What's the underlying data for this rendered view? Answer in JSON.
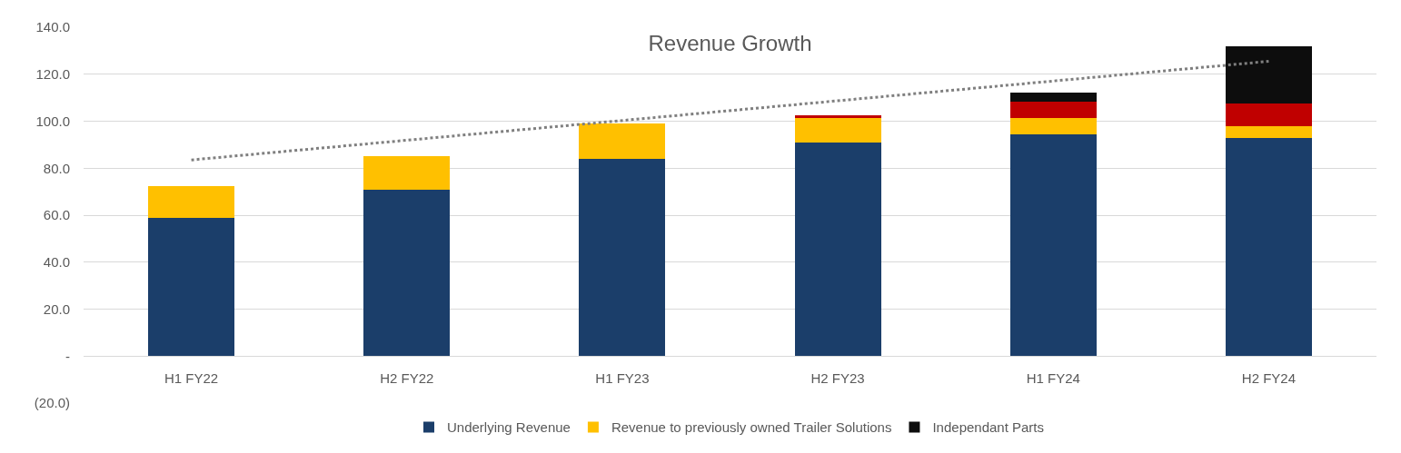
{
  "chart_data": {
    "type": "bar",
    "title": "Revenue Growth",
    "stacked": true,
    "grid": "y",
    "legend": "bottom",
    "categories": [
      "H1 FY22",
      "H2 FY22",
      "H1 FY23",
      "H2 FY23",
      "H1 FY24",
      "H2 FY24"
    ],
    "series": [
      {
        "name": "Underlying Revenue",
        "color": "#1b3e6a",
        "values": [
          59,
          71,
          84,
          91,
          94.5,
          93
        ]
      },
      {
        "name": "Revenue to previously owned Trailer Solutions",
        "color": "#ffc000",
        "values": [
          13.5,
          14,
          15,
          10.5,
          7,
          5
        ]
      },
      {
        "color": "#c00000",
        "values": [
          null,
          null,
          null,
          1,
          7,
          9.5
        ]
      },
      {
        "name": "Independant Parts",
        "color": "#0d0d0d",
        "values": [
          null,
          null,
          null,
          null,
          3.5,
          24.5
        ]
      },
      {
        "type": "line",
        "color": "#7f7f7f",
        "line_style": "dotted",
        "x": [
          "H1 FY22",
          "H2 FY24"
        ],
        "values": [
          83.5,
          125.5
        ]
      }
    ],
    "ylim": [
      -20,
      140
    ],
    "yticks": [
      {
        "value": -20,
        "label": "(20.0)"
      },
      {
        "value": 0,
        "label": "-"
      },
      {
        "value": 20,
        "label": "20.0"
      },
      {
        "value": 40,
        "label": "40.0"
      },
      {
        "value": 60,
        "label": "60.0"
      },
      {
        "value": 80,
        "label": "80.0"
      },
      {
        "value": 100,
        "label": "100.0"
      },
      {
        "value": 120,
        "label": "120.0"
      },
      {
        "value": 140,
        "label": "140.0"
      }
    ]
  }
}
